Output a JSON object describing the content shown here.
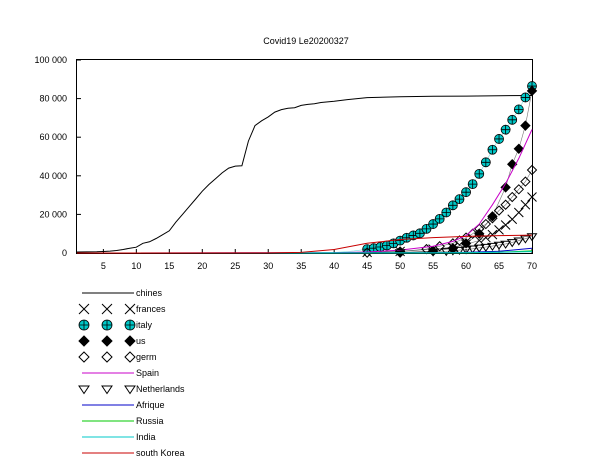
{
  "chart_data": {
    "type": "line",
    "title": "Covid19 Le20200327",
    "xlabel": "",
    "ylabel": "",
    "xlim": [
      1,
      70
    ],
    "ylim": [
      0,
      100000
    ],
    "xticks": [
      5,
      10,
      15,
      20,
      25,
      30,
      35,
      40,
      45,
      50,
      55,
      60,
      65,
      70
    ],
    "xtick_labels": [
      "5",
      "10",
      "15",
      "20",
      "25",
      "30",
      "35",
      "40",
      "45",
      "50",
      "55",
      "60",
      "65",
      "70"
    ],
    "yticks": [
      0,
      20000,
      40000,
      60000,
      80000,
      100000
    ],
    "ytick_labels": [
      "0",
      "20 000",
      "40 000",
      "60 000",
      "80 000",
      "100 000"
    ],
    "grid": false,
    "legend_position": "below",
    "series": [
      {
        "name": "chines",
        "style": "line",
        "color": "#000000",
        "x": [
          1,
          4,
          5,
          6,
          7,
          8,
          9,
          10,
          11,
          12,
          13,
          14,
          15,
          16,
          17,
          18,
          19,
          20,
          21,
          22,
          23,
          24,
          25,
          26,
          27,
          28,
          29,
          30,
          31,
          32,
          33,
          34,
          35,
          36,
          37,
          38,
          39,
          40,
          42,
          45,
          50,
          55,
          60,
          65,
          70
        ],
        "y": [
          500,
          600,
          800,
          1000,
          1300,
          1800,
          2500,
          3000,
          5000,
          5800,
          7500,
          9500,
          11500,
          16000,
          20000,
          24000,
          28000,
          32000,
          35500,
          38500,
          41500,
          44000,
          45000,
          45200,
          58000,
          66000,
          68500,
          70500,
          73000,
          74300,
          75000,
          75300,
          76500,
          77000,
          77300,
          78000,
          78300,
          78600,
          79500,
          80500,
          81000,
          81200,
          81300,
          81500,
          81600
        ]
      },
      {
        "name": "frances",
        "style": "marker",
        "marker": "x",
        "color": "#000000",
        "x": [
          1,
          10,
          20,
          30,
          40,
          45,
          50,
          55,
          58,
          60,
          62,
          63,
          64,
          65,
          66,
          67,
          68,
          69,
          70
        ],
        "y": [
          0,
          0,
          0,
          0,
          100,
          300,
          800,
          2000,
          3000,
          4500,
          6500,
          8000,
          9500,
          12000,
          14500,
          17500,
          21000,
          25000,
          29000
        ]
      },
      {
        "name": "italy",
        "style": "marker",
        "marker": "circleplus",
        "color": "#00c8c8",
        "x": [
          1,
          10,
          20,
          30,
          35,
          40,
          41,
          42,
          43,
          44,
          45,
          46,
          47,
          48,
          49,
          50,
          51,
          52,
          53,
          54,
          55,
          56,
          57,
          58,
          59,
          60,
          61,
          62,
          63,
          64,
          65,
          66,
          67,
          68,
          69,
          70
        ],
        "y": [
          0,
          0,
          0,
          0,
          100,
          300,
          500,
          800,
          1100,
          1500,
          2000,
          2500,
          3100,
          3900,
          5000,
          6400,
          7900,
          9100,
          10200,
          12500,
          15000,
          17700,
          21000,
          24700,
          27900,
          31500,
          35700,
          41000,
          47000,
          53500,
          59100,
          63900,
          69000,
          74400,
          80600,
          86500
        ]
      },
      {
        "name": "us",
        "style": "marker",
        "marker": "diamondfill",
        "color": "#000000",
        "x": [
          1,
          10,
          20,
          30,
          40,
          50,
          55,
          58,
          60,
          62,
          64,
          66,
          67,
          68,
          69,
          70
        ],
        "y": [
          0,
          0,
          0,
          0,
          100,
          200,
          1000,
          2500,
          5000,
          10000,
          19000,
          34000,
          46000,
          54000,
          66000,
          84000
        ]
      },
      {
        "name": "germ",
        "style": "marker",
        "marker": "diamond",
        "color": "#000000",
        "x": [
          1,
          10,
          20,
          30,
          40,
          45,
          50,
          54,
          56,
          58,
          59,
          60,
          61,
          62,
          63,
          64,
          65,
          66,
          67,
          68,
          69,
          70
        ],
        "y": [
          0,
          0,
          0,
          0,
          100,
          200,
          800,
          2000,
          3500,
          5000,
          6500,
          8000,
          10000,
          12500,
          15000,
          18000,
          22000,
          25000,
          29000,
          33000,
          37000,
          43000
        ]
      },
      {
        "name": "Spain",
        "style": "line",
        "color": "#c800c8",
        "x": [
          1,
          40,
          45,
          50,
          55,
          58,
          60,
          62,
          64,
          66,
          68,
          70
        ],
        "y": [
          0,
          100,
          500,
          1500,
          3500,
          6000,
          9000,
          15000,
          25000,
          36000,
          49000,
          64000
        ]
      },
      {
        "name": "Netherlands",
        "style": "marker",
        "marker": "triangledown",
        "color": "#000000",
        "x": [
          1,
          10,
          20,
          30,
          40,
          50,
          55,
          57,
          58,
          59,
          60,
          61,
          62,
          63,
          64,
          65,
          66,
          67,
          68,
          69,
          70
        ],
        "y": [
          0,
          0,
          0,
          0,
          50,
          300,
          700,
          900,
          1200,
          1500,
          1800,
          2200,
          2700,
          3100,
          3600,
          4200,
          4700,
          5500,
          6400,
          7400,
          8600
        ]
      },
      {
        "name": "Afrique",
        "style": "line",
        "color": "#0000c8",
        "x": [
          1,
          55,
          60,
          65,
          70
        ],
        "y": [
          0,
          100,
          300,
          900,
          2500
        ]
      },
      {
        "name": "Russia",
        "style": "line",
        "color": "#00c800",
        "x": [
          1,
          55,
          60,
          65,
          70
        ],
        "y": [
          0,
          50,
          150,
          400,
          1100
        ]
      },
      {
        "name": "India",
        "style": "line",
        "color": "#00c8c8",
        "x": [
          1,
          55,
          60,
          65,
          70
        ],
        "y": [
          0,
          50,
          150,
          350,
          750
        ]
      },
      {
        "name": "south Korea",
        "style": "line",
        "color": "#c80000",
        "x": [
          1,
          30,
          35,
          40,
          45,
          50,
          55,
          60,
          65,
          70
        ],
        "y": [
          0,
          50,
          300,
          1800,
          5000,
          7000,
          8000,
          8600,
          9000,
          9300
        ]
      }
    ]
  }
}
